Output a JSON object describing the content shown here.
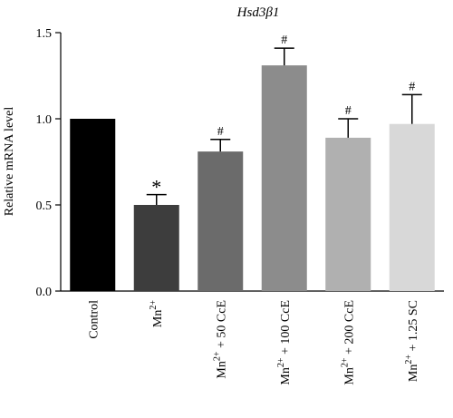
{
  "chart_data": {
    "type": "bar",
    "title": "Hsd3β1",
    "xlabel": "",
    "ylabel": "Relative mRNA level",
    "ylim": [
      0,
      1.5
    ],
    "yticks": [
      "0.0",
      "0.5",
      "1.0",
      "1.5"
    ],
    "categories": [
      {
        "base": "Control",
        "sup": "",
        "rest": ""
      },
      {
        "base": "Mn",
        "sup": "2+",
        "rest": ""
      },
      {
        "base": "Mn",
        "sup": "2+",
        "rest": " + 50 CcE"
      },
      {
        "base": "Mn",
        "sup": "2+",
        "rest": " + 100 CcE"
      },
      {
        "base": "Mn",
        "sup": "2+",
        "rest": " + 200 CcE"
      },
      {
        "base": "Mn",
        "sup": "2+",
        "rest": " + 1.25 SC"
      }
    ],
    "values": [
      1.0,
      0.5,
      0.81,
      1.31,
      0.89,
      0.97
    ],
    "errors": [
      0,
      0.06,
      0.07,
      0.1,
      0.11,
      0.17
    ],
    "annotations": [
      "",
      "*",
      "#",
      "#",
      "#",
      "#"
    ],
    "colors": [
      "#000000",
      "#3d3d3d",
      "#6b6b6b",
      "#8c8c8c",
      "#b0b0b0",
      "#d8d8d8"
    ],
    "grid": false,
    "legend": "none"
  }
}
